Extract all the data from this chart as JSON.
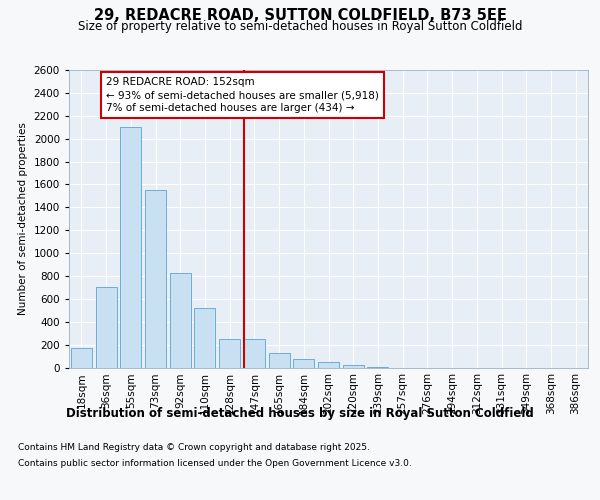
{
  "title": "29, REDACRE ROAD, SUTTON COLDFIELD, B73 5EE",
  "subtitle": "Size of property relative to semi-detached houses in Royal Sutton Coldfield",
  "xlabel": "Distribution of semi-detached houses by size in Royal Sutton Coldfield",
  "ylabel": "Number of semi-detached properties",
  "footnote1": "Contains HM Land Registry data © Crown copyright and database right 2025.",
  "footnote2": "Contains public sector information licensed under the Open Government Licence v3.0.",
  "categories": [
    "18sqm",
    "36sqm",
    "55sqm",
    "73sqm",
    "92sqm",
    "110sqm",
    "128sqm",
    "147sqm",
    "165sqm",
    "184sqm",
    "202sqm",
    "220sqm",
    "239sqm",
    "257sqm",
    "276sqm",
    "294sqm",
    "312sqm",
    "331sqm",
    "349sqm",
    "368sqm",
    "386sqm"
  ],
  "values": [
    170,
    700,
    2100,
    1550,
    830,
    520,
    250,
    250,
    125,
    70,
    45,
    20,
    5,
    0,
    0,
    0,
    0,
    0,
    0,
    0,
    0
  ],
  "bar_color": "#c9dff2",
  "bar_edge_color": "#6aaed6",
  "vline_x": 7.0,
  "vline_color": "#cc0000",
  "annotation_text": "29 REDACRE ROAD: 152sqm\n← 93% of semi-detached houses are smaller (5,918)\n7% of semi-detached houses are larger (434) →",
  "annotation_box_facecolor": "#ffffff",
  "annotation_box_edgecolor": "#cc0000",
  "ylim": [
    0,
    2600
  ],
  "yticks": [
    0,
    200,
    400,
    600,
    800,
    1000,
    1200,
    1400,
    1600,
    1800,
    2000,
    2200,
    2400,
    2600
  ],
  "figure_bg": "#f7f8fa",
  "axes_bg": "#e8eef5",
  "grid_color": "#ffffff",
  "title_fontsize": 10.5,
  "subtitle_fontsize": 8.5,
  "xlabel_fontsize": 8.5,
  "ylabel_fontsize": 7.5,
  "tick_fontsize": 7.5,
  "annotation_fontsize": 7.5,
  "footnote_fontsize": 6.5
}
